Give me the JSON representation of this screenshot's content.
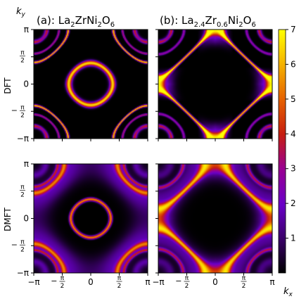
{
  "chart_data": {
    "type": "heatmap",
    "panels": [
      {
        "id": "a",
        "title": "(a): La$_2$ZrNi$_2$O$_6$",
        "row": "DFT",
        "col": 0,
        "model": "dft_a"
      },
      {
        "id": "b",
        "title": "(b): La$_{2.4}$Zr$_{0.6}$Ni$_2$O$_6$",
        "row": "DFT",
        "col": 1,
        "model": "dft_b"
      },
      {
        "id": "c",
        "title": "",
        "row": "DMFT",
        "col": 0,
        "model": "dmft_a"
      },
      {
        "id": "d",
        "title": "",
        "row": "DMFT",
        "col": 1,
        "model": "dmft_b"
      }
    ],
    "row_labels": [
      "DFT",
      "DMFT"
    ],
    "title_a_parts": [
      {
        "t": "(a): La",
        "s": "n"
      },
      {
        "t": "2",
        "s": "sub"
      },
      {
        "t": "ZrNi",
        "s": "n"
      },
      {
        "t": "2",
        "s": "sub"
      },
      {
        "t": "O",
        "s": "n"
      },
      {
        "t": "6",
        "s": "sub"
      }
    ],
    "title_b_parts": [
      {
        "t": "(b): La",
        "s": "n"
      },
      {
        "t": "2.4",
        "s": "sub"
      },
      {
        "t": "Zr",
        "s": "n"
      },
      {
        "t": "0.6",
        "s": "sub"
      },
      {
        "t": "Ni",
        "s": "n"
      },
      {
        "t": "2",
        "s": "sub"
      },
      {
        "t": "O",
        "s": "n"
      },
      {
        "t": "6",
        "s": "sub"
      }
    ],
    "xlabel": "k_x",
    "ylabel": "k_y",
    "xlabel_parts": {
      "base": "k",
      "sub": "x"
    },
    "ylabel_parts": {
      "base": "k",
      "sub": "y"
    },
    "x_ticks": [
      {
        "value": -3.14159,
        "label": "−π"
      },
      {
        "value": -1.5708,
        "label": "−π/2"
      },
      {
        "value": 0,
        "label": "0"
      },
      {
        "value": 1.5708,
        "label": "π/2"
      },
      {
        "value": 3.14159,
        "label": "π"
      }
    ],
    "y_ticks": [
      {
        "value": 3.14159,
        "label": "π"
      },
      {
        "value": 1.5708,
        "label": "π/2"
      },
      {
        "value": 0,
        "label": "0"
      },
      {
        "value": -1.5708,
        "label": "−π/2"
      },
      {
        "value": -3.14159,
        "label": "−π"
      }
    ],
    "xlim": [
      -3.14159,
      3.14159
    ],
    "ylim": [
      -3.14159,
      3.14159
    ],
    "colorbar": {
      "range": [
        0,
        7
      ],
      "ticks": [
        1,
        2,
        3,
        4,
        5,
        6,
        7
      ],
      "colormap": "gnuplot",
      "stops": [
        "#000000",
        "#3a0068",
        "#6a00c8",
        "#9a0090",
        "#c61e10",
        "#e56000",
        "#f5b400",
        "#ffff00"
      ]
    },
    "grid": false
  }
}
